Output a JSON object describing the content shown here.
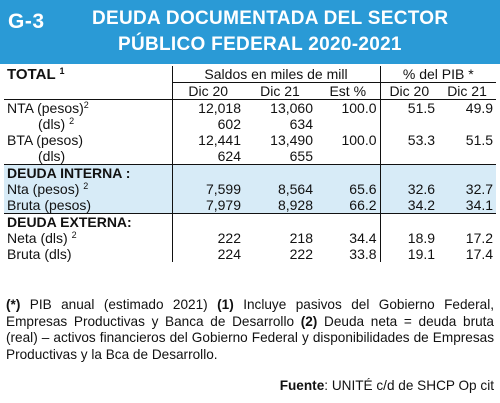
{
  "header": {
    "code": "G-3",
    "title_line1": "DEUDA DOCUMENTADA DEL SECTOR",
    "title_line2": "PÚBLICO FEDERAL 2020-2021",
    "band_color": "#2a9ad6"
  },
  "table": {
    "total_label": "TOTAL",
    "total_mark": "1",
    "group_saldos": "Saldos en miles de mill",
    "group_pib": "% del PIB *",
    "columns": [
      "Dic 20",
      "Dic 21",
      "Est %",
      "Dic 20",
      "Dic 21"
    ],
    "rows": [
      {
        "label": "NTA (pesos)",
        "mark": "2",
        "values": [
          "12,018",
          "13,060",
          "100.0",
          "51.5",
          "49.9"
        ]
      },
      {
        "label": "(dls)",
        "mark": "2",
        "values": [
          "602",
          "634",
          "",
          "",
          ""
        ]
      },
      {
        "label": "BTA (pesos)",
        "mark": "",
        "values": [
          "12,441",
          "13,490",
          "100.0",
          "53.3",
          "51.5"
        ]
      },
      {
        "label": "(dls)",
        "mark": "",
        "values": [
          "624",
          "655",
          "",
          "",
          ""
        ]
      }
    ],
    "interna": {
      "heading": "DEUDA INTERNA :",
      "rows": [
        {
          "label": "Nta (pesos)",
          "mark": "2",
          "values": [
            "7,599",
            "8,564",
            "65.6",
            "32.6",
            "32.7"
          ]
        },
        {
          "label": "Bruta (pesos)",
          "mark": "",
          "values": [
            "7,979",
            "8,928",
            "66.2",
            "34.2",
            "34.1"
          ]
        }
      ]
    },
    "externa": {
      "heading": "DEUDA EXTERNA:",
      "rows": [
        {
          "label": "Neta (dls)",
          "mark": "2",
          "values": [
            "222",
            "218",
            "34.4",
            "18.9",
            "17.2"
          ]
        },
        {
          "label": "Bruta (dls)",
          "mark": "",
          "values": [
            "224",
            "222",
            "33.8",
            "19.1",
            "17.4"
          ]
        }
      ]
    },
    "shade_color": "#d7ebf7"
  },
  "footnote": {
    "m1": "(*)",
    "t1": " PIB anual (estimado 2021) ",
    "m2": "(1)",
    "t2": " Incluye pasivos del Gobierno Federal, Empresas Productivas y Banca de Desarrollo ",
    "m3": "(2)",
    "t3": " Deuda neta = deuda bruta (real) – activos financieros del Gobierno Federal y disponibilidades de Empresas Productivas y la Bca de Desarrollo.",
    "source_label": "Fuente",
    "source_text": ": UNITÉ c/d de SHCP Op cit"
  }
}
